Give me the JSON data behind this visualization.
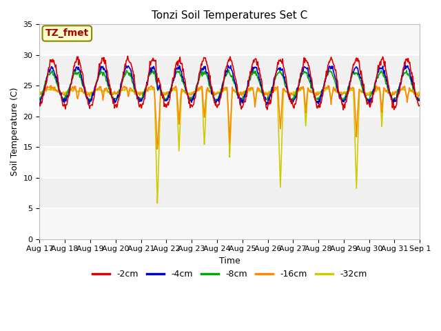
{
  "title": "Tonzi Soil Temperatures Set C",
  "xlabel": "Time",
  "ylabel": "Soil Temperature (C)",
  "ylim": [
    0,
    35
  ],
  "n_days": 15,
  "fig_bg": "#ffffff",
  "plot_bg": "#f0f0f0",
  "legend_entries": [
    "-2cm",
    "-4cm",
    "-8cm",
    "-16cm",
    "-32cm"
  ],
  "legend_colors": [
    "#dd0000",
    "#0000cc",
    "#00aa00",
    "#ff8800",
    "#cccc00"
  ],
  "annotation_text": "TZ_fmet",
  "annotation_color": "#aa0000",
  "annotation_bg": "#ffffcc",
  "annotation_border": "#888800",
  "tick_labels": [
    "Aug 17",
    "Aug 18",
    "Aug 19",
    "Aug 20",
    "Aug 21",
    "Aug 22",
    "Aug 23",
    "Aug 24",
    "Aug 25",
    "Aug 26",
    "Aug 27",
    "Aug 28",
    "Aug 29",
    "Aug 30",
    "Aug 31",
    "Sep 1"
  ],
  "yticks": [
    0,
    5,
    10,
    15,
    20,
    25,
    30,
    35
  ],
  "title_fontsize": 11,
  "axis_label_fontsize": 9,
  "tick_fontsize": 8,
  "lw": 1.2
}
